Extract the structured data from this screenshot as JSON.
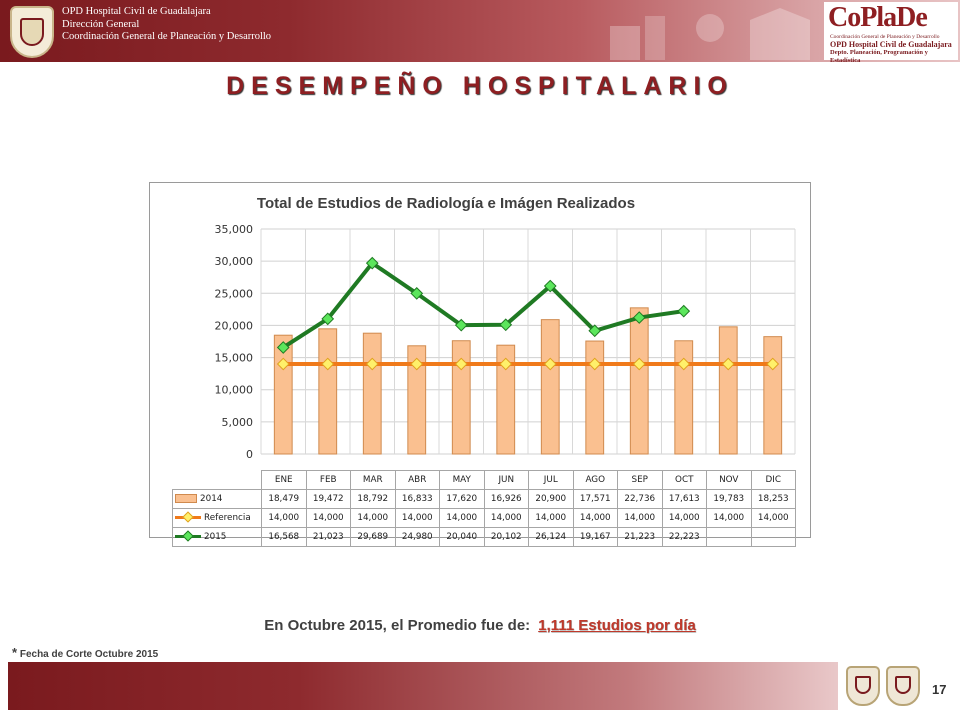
{
  "header": {
    "line1": "OPD Hospital Civil de Guadalajara",
    "line2": "Dirección General",
    "line3": "Coordinación General de Planeación y Desarrollo",
    "logo_text": "CoPlaDe",
    "logo_sub1": "Coordinación General de Planeación y Desarrollo",
    "logo_sub2": "OPD Hospital Civil de Guadalajara",
    "logo_sub3": "Depto. Planeación, Programación y Estadística"
  },
  "page_title": "DESEMPEÑO HOSPITALARIO",
  "chart_data": {
    "type": "bar",
    "title": "Total de Estudios de Radiología e Imágen Realizados",
    "categories": [
      "ENE",
      "FEB",
      "MAR",
      "ABR",
      "MAY",
      "JUN",
      "JUL",
      "AGO",
      "SEP",
      "OCT",
      "NOV",
      "DIC"
    ],
    "ylim": [
      0,
      35000
    ],
    "yticks": [
      "35,000",
      "30,000",
      "25,000",
      "20,000",
      "15,000",
      "10,000",
      "5,000",
      "0"
    ],
    "grid": true,
    "series": [
      {
        "name": "2014",
        "type": "bar",
        "color": "#fac090",
        "values": [
          18479,
          19472,
          18792,
          16833,
          17620,
          16926,
          20900,
          17571,
          22736,
          17613,
          19783,
          18253
        ],
        "labels": [
          "18,479",
          "19,472",
          "18,792",
          "16,833",
          "17,620",
          "16,926",
          "20,900",
          "17,571",
          "22,736",
          "17,613",
          "19,783",
          "18,253"
        ]
      },
      {
        "name": "Referencia",
        "type": "line",
        "color": "#f07a1a",
        "values": [
          14000,
          14000,
          14000,
          14000,
          14000,
          14000,
          14000,
          14000,
          14000,
          14000,
          14000,
          14000
        ],
        "labels": [
          "14,000",
          "14,000",
          "14,000",
          "14,000",
          "14,000",
          "14,000",
          "14,000",
          "14,000",
          "14,000",
          "14,000",
          "14,000",
          "14,000"
        ]
      },
      {
        "name": "2015",
        "type": "line",
        "color": "#1f7a23",
        "values": [
          16568,
          21023,
          29689,
          24980,
          20040,
          20102,
          26124,
          19167,
          21223,
          22223,
          null,
          null
        ],
        "labels": [
          "16,568",
          "21,023",
          "29,689",
          "24,980",
          "20,040",
          "20,102",
          "26,124",
          "19,167",
          "21,223",
          "22,223",
          "",
          ""
        ]
      }
    ]
  },
  "footnote": {
    "text": "En Octubre 2015, el Promedio fue de:",
    "highlight": "1,111  Estudios por día"
  },
  "cutoff_star": "*",
  "cutoff_text": "Fecha de Corte Octubre 2015",
  "page_number": "17"
}
